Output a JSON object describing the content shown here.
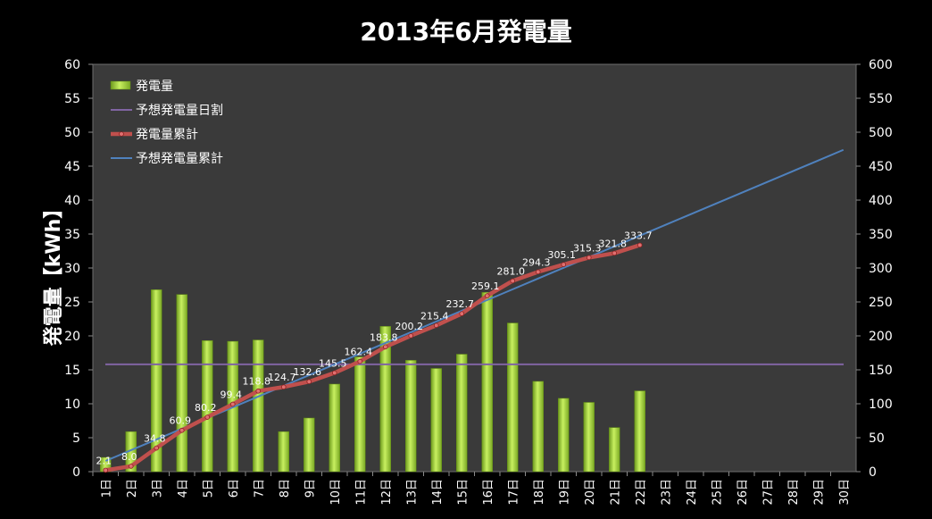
{
  "chart_data": {
    "type": "bar",
    "title": "2013年6月発電量",
    "ylabel": "発電量【kWh】",
    "y2label": "",
    "xlabel": "",
    "categories": [
      "1日",
      "2日",
      "3日",
      "4日",
      "5日",
      "6日",
      "7日",
      "8日",
      "9日",
      "10日",
      "11日",
      "12日",
      "13日",
      "14日",
      "15日",
      "16日",
      "17日",
      "18日",
      "19日",
      "20日",
      "21日",
      "22日",
      "23日",
      "24日",
      "25日",
      "26日",
      "27日",
      "28日",
      "29日",
      "30日"
    ],
    "ylim": [
      0,
      60
    ],
    "yticks": [
      0,
      5,
      10,
      15,
      20,
      25,
      30,
      35,
      40,
      45,
      50,
      55,
      60
    ],
    "y2lim": [
      0,
      600
    ],
    "y2ticks": [
      0,
      50,
      100,
      150,
      200,
      250,
      300,
      350,
      400,
      450,
      500,
      550,
      600
    ],
    "grid": false,
    "legend_position": "top-left",
    "series": [
      {
        "name": "発電量",
        "type": "bar",
        "axis": "left",
        "color": "#9acd32",
        "values": [
          2.1,
          5.9,
          26.8,
          26.1,
          19.3,
          19.2,
          19.4,
          5.9,
          7.9,
          12.9,
          16.9,
          21.4,
          16.4,
          15.2,
          17.3,
          26.4,
          21.9,
          13.3,
          10.8,
          10.2,
          6.5,
          11.9,
          null,
          null,
          null,
          null,
          null,
          null,
          null,
          null
        ]
      },
      {
        "name": "予想発電量日割",
        "type": "line",
        "axis": "left",
        "color": "#8064a2",
        "values": [
          15.8,
          15.8,
          15.8,
          15.8,
          15.8,
          15.8,
          15.8,
          15.8,
          15.8,
          15.8,
          15.8,
          15.8,
          15.8,
          15.8,
          15.8,
          15.8,
          15.8,
          15.8,
          15.8,
          15.8,
          15.8,
          15.8,
          15.8,
          15.8,
          15.8,
          15.8,
          15.8,
          15.8,
          15.8,
          15.8
        ]
      },
      {
        "name": "発電量累計",
        "type": "line",
        "axis": "right",
        "color": "#c0504d",
        "data_labels": [
          "2.1",
          "8.0",
          "34.8",
          "60.9",
          "80.2",
          "99.4",
          "118.8",
          "124.7",
          "132.6",
          "145.5",
          "162.4",
          "183.8",
          "200.2",
          "215.4",
          "232.7",
          "259.1",
          "281.0",
          "294.3",
          "305.1",
          "315.3",
          "321.8",
          "333.7"
        ],
        "values": [
          2.1,
          8.0,
          34.8,
          60.9,
          80.2,
          99.4,
          118.8,
          124.7,
          132.6,
          145.5,
          162.4,
          183.8,
          200.2,
          215.4,
          232.7,
          259.1,
          281.0,
          294.3,
          305.1,
          315.3,
          321.8,
          333.7,
          null,
          null,
          null,
          null,
          null,
          null,
          null,
          null
        ]
      },
      {
        "name": "予想発電量累計",
        "type": "line",
        "axis": "right",
        "color": "#4f81bd",
        "values": [
          15.8,
          31.6,
          47.4,
          63.2,
          79.0,
          94.8,
          110.6,
          126.4,
          142.2,
          158.0,
          173.8,
          189.6,
          205.4,
          221.2,
          237.0,
          252.8,
          268.6,
          284.4,
          300.2,
          316.0,
          331.8,
          347.6,
          363.4,
          379.2,
          395.0,
          410.8,
          426.6,
          442.4,
          458.2,
          474.0
        ]
      }
    ]
  }
}
